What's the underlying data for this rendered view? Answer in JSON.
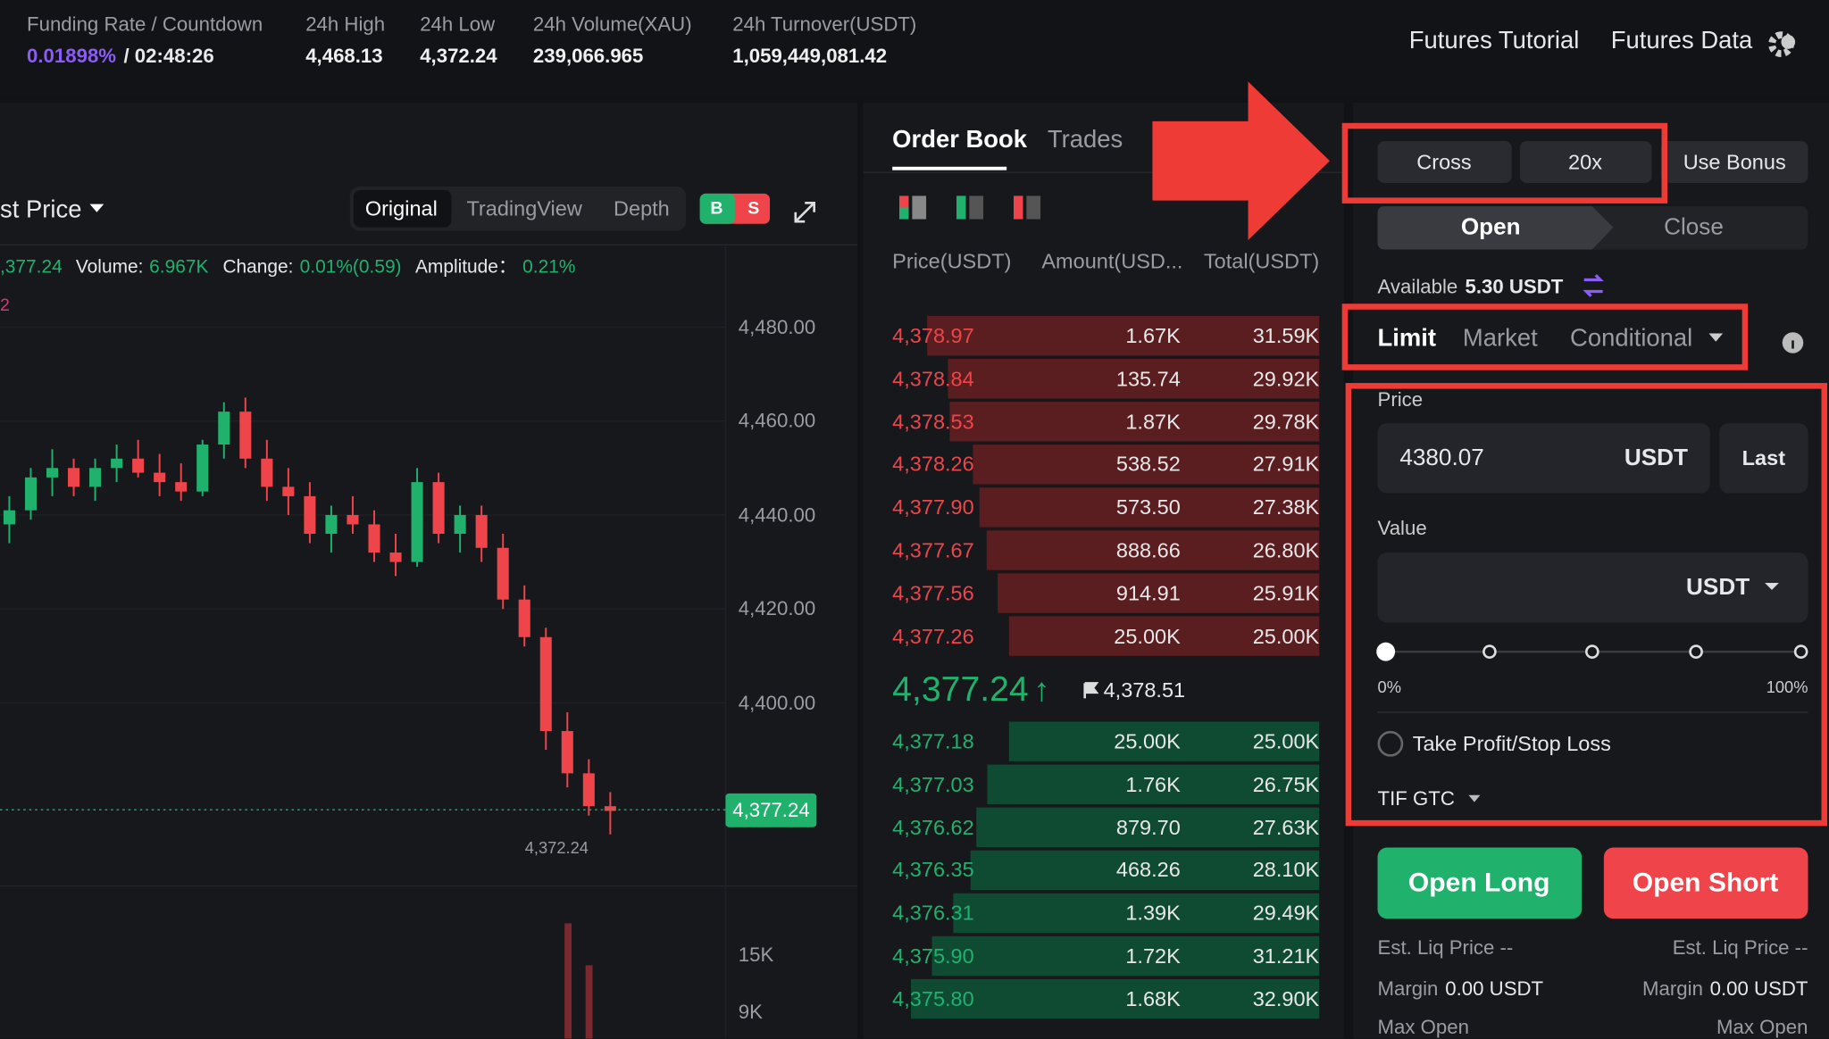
{
  "header": {
    "stats": [
      {
        "label": "Funding Rate / Countdown",
        "value": "0.01898%",
        "extra": "/ 02:48:26"
      },
      {
        "label": "24h High",
        "value": "4,468.13"
      },
      {
        "label": "24h Low",
        "value": "4,372.24"
      },
      {
        "label": "24h Volume(XAU)",
        "value": "239,066.965"
      },
      {
        "label": "24h Turnover(USDT)",
        "value": "1,059,449,081.42"
      }
    ],
    "links": [
      "Futures Tutorial",
      "Futures Data"
    ]
  },
  "chart": {
    "price_type": "st Price",
    "views": [
      "Original",
      "TradingView",
      "Depth"
    ],
    "badge": [
      "B",
      "S"
    ],
    "info": [
      ",377.24",
      "Volume:",
      "6.967K",
      "Change:",
      "0.01%(0.59)",
      "Amplitude：",
      "0.21%"
    ],
    "side_tag": "2",
    "ylim": [
      4361,
      4500
    ],
    "yticks": [
      {
        "value": 4480,
        "label": "4,480.00"
      },
      {
        "value": 4460,
        "label": "4,460.00"
      },
      {
        "value": 4440,
        "label": "4,440.00"
      },
      {
        "value": 4420,
        "label": "4,420.00"
      },
      {
        "value": 4400,
        "label": "4,400.00"
      }
    ],
    "candles": [
      [
        4438,
        4444,
        4434,
        4441
      ],
      [
        4441,
        4450,
        4439,
        4448
      ],
      [
        4448,
        4454,
        4444,
        4450
      ],
      [
        4450,
        4452,
        4444,
        4446
      ],
      [
        4446,
        4452,
        4443,
        4450
      ],
      [
        4450,
        4455,
        4447,
        4452
      ],
      [
        4452,
        4456,
        4448,
        4449
      ],
      [
        4449,
        4453,
        4444,
        4447
      ],
      [
        4447,
        4451,
        4443,
        4445
      ],
      [
        4445,
        4456,
        4444,
        4455
      ],
      [
        4455,
        4464,
        4452,
        4462
      ],
      [
        4462,
        4465,
        4450,
        4452
      ],
      [
        4452,
        4456,
        4443,
        4446
      ],
      [
        4446,
        4450,
        4440,
        4444
      ],
      [
        4444,
        4447,
        4434,
        4436
      ],
      [
        4436,
        4442,
        4432,
        4440
      ],
      [
        4440,
        4444,
        4436,
        4438
      ],
      [
        4438,
        4441,
        4430,
        4432
      ],
      [
        4432,
        4436,
        4427,
        4430
      ],
      [
        4430,
        4450,
        4429,
        4447
      ],
      [
        4447,
        4449,
        4434,
        4436
      ],
      [
        4436,
        4442,
        4432,
        4440
      ],
      [
        4440,
        4442,
        4430,
        4433
      ],
      [
        4433,
        4436,
        4420,
        4422
      ],
      [
        4422,
        4425,
        4412,
        4414
      ],
      [
        4414,
        4416,
        4390,
        4394
      ],
      [
        4394,
        4398,
        4382,
        4385
      ],
      [
        4385,
        4388,
        4376,
        4378
      ],
      [
        4378,
        4381,
        4372,
        4377
      ]
    ],
    "last_price": {
      "value": 4377.24,
      "label": "4,377.24"
    },
    "low_marker": "4,372.24",
    "volume_ticks": [
      "15K",
      "9K"
    ]
  },
  "order_book": {
    "tabs": [
      "Order Book",
      "Trades"
    ],
    "columns": [
      "Price(USDT)",
      "Amount(USD...",
      "Total(USDT)"
    ],
    "asks": {
      "prices": [
        "4,378.97",
        "4,378.84",
        "4,378.53",
        "4,378.26",
        "4,377.90",
        "4,377.67",
        "4,377.56",
        "4,377.26"
      ],
      "amounts": [
        "1.67K",
        "135.74",
        "1.87K",
        "538.52",
        "573.50",
        "888.66",
        "914.91",
        "25.00K"
      ],
      "totals": [
        31.59,
        29.92,
        29.78,
        27.91,
        27.38,
        26.8,
        25.91,
        25.0
      ],
      "total_labels": [
        "31.59K",
        "29.92K",
        "29.78K",
        "27.91K",
        "27.38K",
        "26.80K",
        "25.91K",
        "25.00K"
      ]
    },
    "mid_price": "4,377.24",
    "mid_arrow": "↑",
    "mark_price": "4,378.51",
    "bids": {
      "prices": [
        "4,377.18",
        "4,377.03",
        "4,376.62",
        "4,376.35",
        "4,376.31",
        "4,375.90",
        "4,375.80"
      ],
      "amounts": [
        "25.00K",
        "1.76K",
        "879.70",
        "468.26",
        "1.39K",
        "1.72K",
        "1.68K"
      ],
      "totals": [
        25.0,
        26.75,
        27.63,
        28.1,
        29.49,
        31.21,
        32.9
      ],
      "total_labels": [
        "25.00K",
        "26.75K",
        "27.63K",
        "28.10K",
        "29.49K",
        "31.21K",
        "32.90K"
      ]
    }
  },
  "order_form": {
    "margin_mode": "Cross",
    "leverage": "20x",
    "bonus": "Use Bonus",
    "sides": [
      "Open",
      "Close"
    ],
    "available_label": "Available",
    "available_value": "5.30 USDT",
    "order_types": [
      "Limit",
      "Market",
      "Conditional"
    ],
    "price_label": "Price",
    "price_value": "4380.07",
    "price_unit": "USDT",
    "last": "Last",
    "value_label": "Value",
    "value_unit": "USDT",
    "slider_labels": [
      "0%",
      "100%"
    ],
    "tpsl": "Take Profit/Stop Loss",
    "tif": "TIF GTC",
    "buttons": [
      "Open Long",
      "Open Short"
    ],
    "est_liq": [
      "Est. Liq Price --",
      "Est. Liq Price --"
    ],
    "margin_label": [
      "Margin",
      "Margin"
    ],
    "margin_value": [
      "0.00 USDT",
      "0.00 USDT"
    ],
    "max_open": [
      "Max Open",
      "Max Open"
    ]
  }
}
